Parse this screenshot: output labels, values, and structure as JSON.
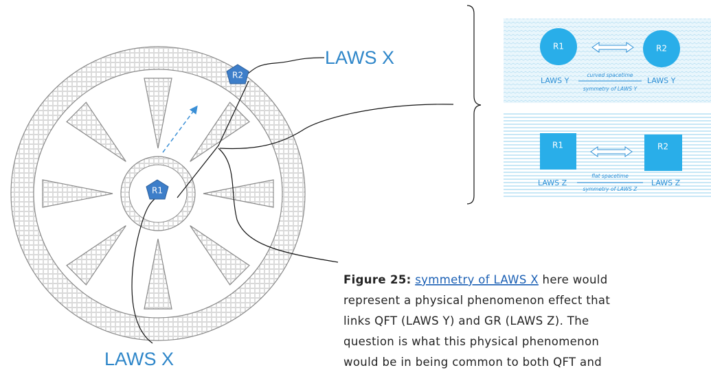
{
  "labels": {
    "top": "LAWS X",
    "bottom": "LAWS X"
  },
  "nodes": [
    {
      "label": "R2"
    },
    {
      "label": "R1"
    }
  ],
  "panels": [
    {
      "left": "R1",
      "right": "R2",
      "left_label": "LAWS Y",
      "right_label": "LAWS Y",
      "above": "curved spacetime",
      "below": "symmetry of LAWS Y"
    },
    {
      "left": "R1",
      "right": "R2",
      "left_label": "LAWS Z",
      "right_label": "LAWS Z",
      "above": "flat spacetime",
      "below": "symmetry of LAWS Z"
    }
  ],
  "caption": {
    "figure": "Figure 25:",
    "link": "symmetry of LAWS X",
    "first_rest": "here would",
    "lines": [
      "represent a physical phenomenon effect that",
      "links QFT (LAWS Y) and GR (LAWS Z). The",
      "question is what this physical phenomenon",
      "would be in being common to both QFT and"
    ]
  }
}
